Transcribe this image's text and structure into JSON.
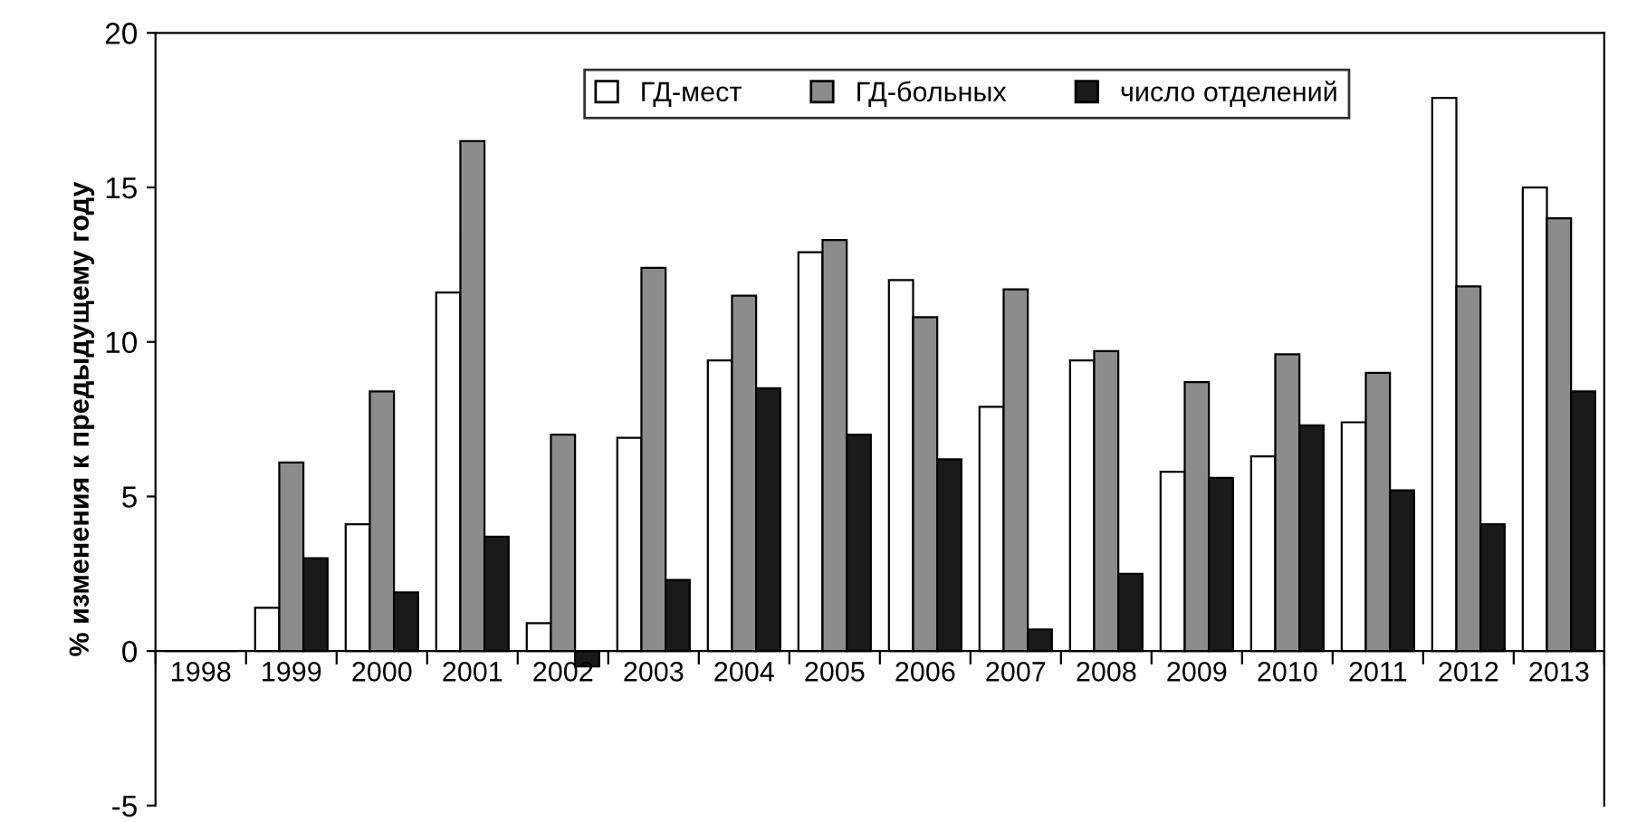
{
  "chart_data": {
    "type": "bar",
    "ylabel": "% изменения к предыдущему году",
    "categories": [
      "1998",
      "1999",
      "2000",
      "2001",
      "2002",
      "2003",
      "2004",
      "2005",
      "2006",
      "2007",
      "2008",
      "2009",
      "2010",
      "2011",
      "2012",
      "2013"
    ],
    "series": [
      {
        "name": "ГД-мест",
        "color": "#ffffff",
        "values": [
          0,
          1.4,
          4.1,
          11.6,
          0.9,
          6.9,
          9.4,
          12.9,
          12.0,
          7.9,
          9.4,
          5.8,
          6.3,
          7.4,
          17.9,
          15.0
        ]
      },
      {
        "name": "ГД-больных",
        "color": "#8c8c8c",
        "values": [
          0,
          6.1,
          8.4,
          16.5,
          7.0,
          12.4,
          11.5,
          13.3,
          10.8,
          11.7,
          9.7,
          8.7,
          9.6,
          9.0,
          11.8,
          14.0
        ]
      },
      {
        "name": "число отделений",
        "color": "#1a1a1a",
        "values": [
          0,
          3.0,
          1.9,
          3.7,
          -0.5,
          2.3,
          8.5,
          7.0,
          6.2,
          0.7,
          2.5,
          5.6,
          7.3,
          5.2,
          4.1,
          8.4
        ]
      }
    ],
    "ylim": [
      -5,
      20
    ],
    "yticks": [
      -5,
      0,
      5,
      10,
      15,
      20
    ],
    "grid": false,
    "legend": "top"
  }
}
